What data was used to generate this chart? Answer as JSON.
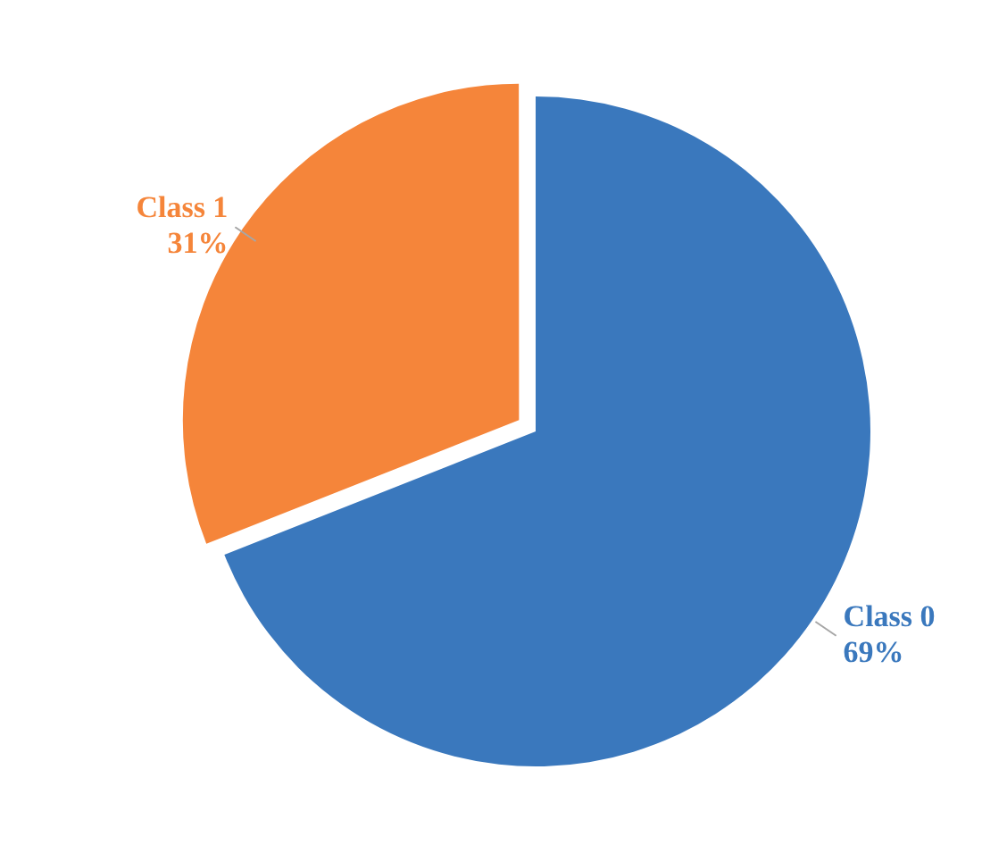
{
  "chart_data": {
    "type": "pie",
    "categories": [
      "Class 0",
      "Class 1"
    ],
    "values": [
      69,
      31
    ],
    "colors": [
      "#3a78bd",
      "#f5853a"
    ],
    "value_labels": [
      "69%",
      "31%"
    ],
    "legend": false
  }
}
